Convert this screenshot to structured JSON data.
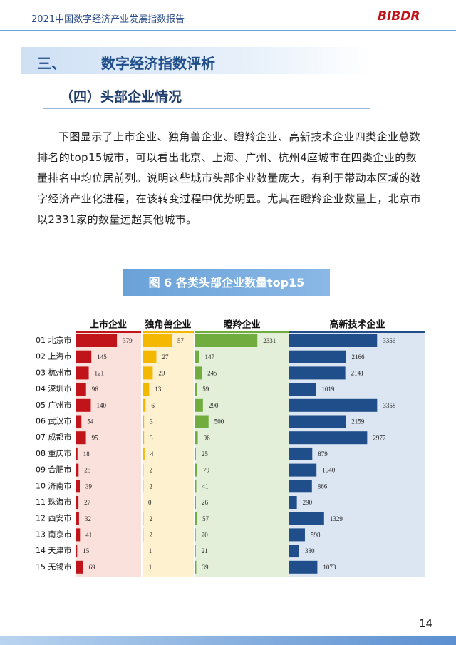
{
  "header": {
    "title": "2021中国数字经济产业发展指数报告",
    "logo": "BIBDR"
  },
  "section": {
    "number": "三、",
    "title": "数字经济指数评析"
  },
  "subsection": {
    "title": "（四）头部企业情况"
  },
  "paragraph": "下图显示了上市企业、独角兽企业、瞪羚企业、高新技术企业四类企业总数排名的top15城市，可以看出北京、上海、广州、杭州4座城市在四类企业的数量排名中均位居前列。说明这些城市头部企业数量庞大，有利于带动本区域的数字经济产业化进程，在该转变过程中优势明显。尤其在瞪羚企业数量上，北京市以2331家的数量远超其他城市。",
  "chart_data": {
    "type": "bar",
    "orientation": "horizontal",
    "title": "图 6  各类头部企业数量top15",
    "categories": [
      "01 北京市",
      "02 上海市",
      "03 杭州市",
      "04 深圳市",
      "05 广州市",
      "06 武汉市",
      "07 成都市",
      "08 重庆市",
      "09 合肥市",
      "10 济南市",
      "11 珠海市",
      "12 西安市",
      "13 南京市",
      "14 天津市",
      "15 无锡市"
    ],
    "series": [
      {
        "name": "上市企业",
        "color": "#c0141a",
        "background": "#fbe1dc",
        "xlim": [
          0,
          600
        ],
        "values": [
          379,
          145,
          121,
          96,
          140,
          54,
          95,
          18,
          28,
          39,
          27,
          32,
          41,
          15,
          69
        ]
      },
      {
        "name": "独角兽企业",
        "color": "#f5b800",
        "background": "#fdf1cf",
        "xlim": [
          0,
          100
        ],
        "values": [
          57,
          27,
          20,
          13,
          6,
          3,
          3,
          4,
          2,
          2,
          0,
          2,
          2,
          1,
          1
        ]
      },
      {
        "name": "瞪羚企业",
        "color": "#70ad3e",
        "background": "#e3efd8",
        "xlim": [
          0,
          3500
        ],
        "values": [
          2331,
          147,
          245,
          59,
          290,
          500,
          96,
          25,
          79,
          41,
          26,
          57,
          20,
          21,
          39
        ]
      },
      {
        "name": "高新技术企业",
        "color": "#1f4e8a",
        "background": "#dce6f2",
        "xlim": [
          0,
          5200
        ],
        "values": [
          3356,
          2166,
          2141,
          1019,
          3358,
          2159,
          2977,
          879,
          1040,
          866,
          290,
          1329,
          598,
          380,
          1073
        ]
      }
    ]
  },
  "page_number": "14"
}
